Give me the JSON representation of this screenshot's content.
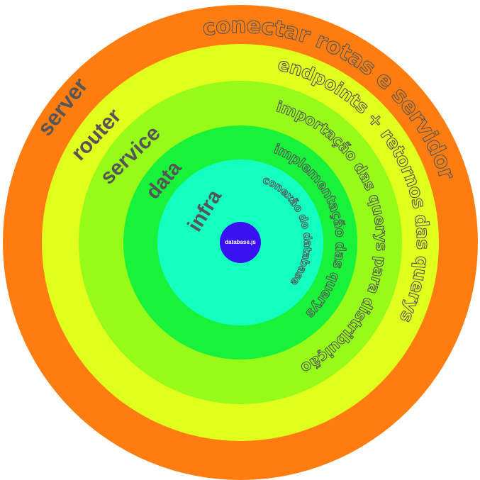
{
  "layers": [
    {
      "name": "server",
      "description": "conectar rotas e servidor",
      "color": "#ff7d10",
      "desc_stroke": "#555555"
    },
    {
      "name": "router",
      "description": "endpoints + retornos das querys",
      "color": "#e1ff1c",
      "desc_stroke": "#555555"
    },
    {
      "name": "service",
      "description": "importação das querys para distribuição",
      "color": "#96fb18",
      "desc_stroke": "#555555"
    },
    {
      "name": "data",
      "description": "implementação das querys",
      "color": "#19f23a",
      "desc_stroke": "#555555"
    },
    {
      "name": "infra",
      "description": "conexão do database",
      "color": "#12ffc0",
      "desc_stroke": "#555555"
    }
  ],
  "core": {
    "label": "database.js",
    "color": "#3a11f0"
  }
}
